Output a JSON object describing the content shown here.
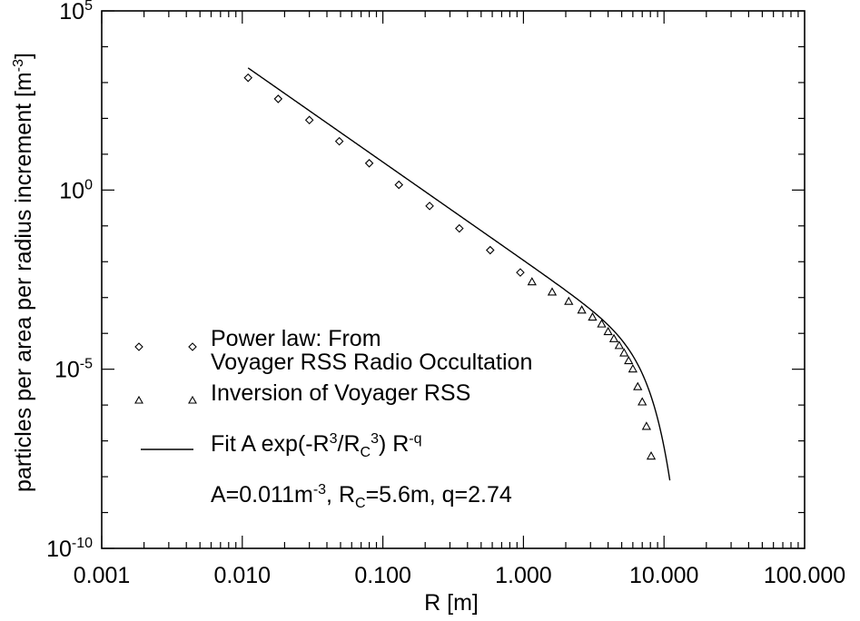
{
  "chart_data": {
    "type": "scatter",
    "title": "",
    "xlabel": "R [m]",
    "ylabel": "particles per area per radius increment [m",
    "ylabel_sup": "-3",
    "ylabel_end": "]",
    "xscale": "log",
    "yscale": "log",
    "xlim": [
      0.001,
      100
    ],
    "ylim": [
      1e-10,
      100000
    ],
    "grid": false,
    "legend_position": "lower-left",
    "x_ticks": [
      {
        "value": 0.001,
        "label": "0.001"
      },
      {
        "value": 0.01,
        "label": "0.010"
      },
      {
        "value": 0.1,
        "label": "0.100"
      },
      {
        "value": 1,
        "label": "1.000"
      },
      {
        "value": 10,
        "label": "10.000"
      },
      {
        "value": 100,
        "label": "100.000"
      }
    ],
    "y_ticks": [
      {
        "value": 100000,
        "base": "10",
        "exp": "5"
      },
      {
        "value": 1,
        "base": "10",
        "exp": "0"
      },
      {
        "value": 1e-05,
        "base": "10",
        "exp": "-5"
      },
      {
        "value": 1e-10,
        "base": "10",
        "exp": "-10"
      }
    ],
    "series": [
      {
        "name": "Power law: From Voyager RSS Radio Occultation",
        "marker": "diamond",
        "points": [
          [
            0.011,
            1360
          ],
          [
            0.018,
            350
          ],
          [
            0.03,
            90
          ],
          [
            0.049,
            23
          ],
          [
            0.08,
            5.6
          ],
          [
            0.13,
            1.4
          ],
          [
            0.215,
            0.36
          ],
          [
            0.35,
            0.085
          ],
          [
            0.58,
            0.021
          ],
          [
            0.95,
            0.005
          ]
        ]
      },
      {
        "name": "Inversion of Voyager RSS",
        "marker": "triangle",
        "points": [
          [
            1.15,
            0.0027
          ],
          [
            1.6,
            0.0014
          ],
          [
            2.1,
            0.00077
          ],
          [
            2.6,
            0.00044
          ],
          [
            3.1,
            0.00028
          ],
          [
            3.6,
            0.00018
          ],
          [
            4.0,
            0.00011
          ],
          [
            4.4,
            7e-05
          ],
          [
            4.8,
            4.5e-05
          ],
          [
            5.2,
            2.8e-05
          ],
          [
            5.6,
            1.7e-05
          ],
          [
            6.0,
            1e-05
          ],
          [
            6.5,
            3.2e-06
          ],
          [
            7.0,
            1.2e-06
          ],
          [
            7.5,
            2.5e-07
          ],
          [
            8.1,
            3.7e-08
          ]
        ]
      },
      {
        "name": "Fit A exp(-R³/R_C³) R^-q",
        "type": "line",
        "function": "A*exp(-(R/Rc)^3)*R^(-q)",
        "A": 0.011,
        "Rc": 5.6,
        "q": 2.74,
        "x_range": [
          0.011,
          11
        ]
      }
    ],
    "legend": {
      "diamond_label_line1": "Power law: From",
      "diamond_label_line2": "Voyager RSS Radio Occultation",
      "triangle_label": "Inversion of Voyager RSS",
      "fit_label_a": "Fit A exp(-R",
      "fit_sup_3a": "3",
      "fit_label_b": "/R",
      "fit_sub_c": "C",
      "fit_sup_3b": "3",
      "fit_label_c": ") R",
      "fit_sup_q": "-q",
      "params_a": "A=0.011m",
      "params_sup": "-3",
      "params_b": ", R",
      "params_sub": "C",
      "params_c": "=5.6m, q=2.74"
    }
  }
}
